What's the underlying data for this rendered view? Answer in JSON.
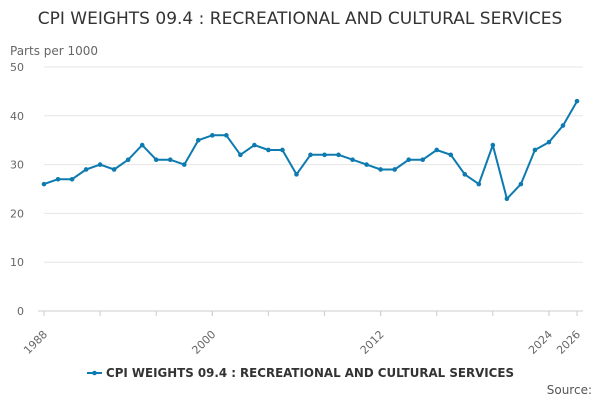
{
  "chart_data": {
    "type": "line",
    "title": "CPI WEIGHTS 09.4 : RECREATIONAL AND CULTURAL SERVICES",
    "ylabel": "Parts per 1000",
    "xlabel": "",
    "ylim": [
      0,
      50
    ],
    "yticks": [
      0,
      10,
      20,
      30,
      40,
      50
    ],
    "xlim": [
      1988,
      2026
    ],
    "xticks": [
      1988,
      2000,
      2012,
      2024,
      2026
    ],
    "grid": true,
    "legend_position": "bottom",
    "series": [
      {
        "name": "CPI WEIGHTS 09.4 : RECREATIONAL AND CULTURAL SERVICES",
        "color": "#0d7ab0",
        "x": [
          1988,
          1989,
          1990,
          1991,
          1992,
          1993,
          1994,
          1995,
          1996,
          1997,
          1998,
          1999,
          2000,
          2001,
          2002,
          2003,
          2004,
          2005,
          2006,
          2007,
          2008,
          2009,
          2010,
          2011,
          2012,
          2013,
          2014,
          2015,
          2016,
          2017,
          2018,
          2019,
          2020,
          2021,
          2022,
          2023,
          2024,
          2025,
          2026
        ],
        "values": [
          26,
          27,
          27,
          29,
          30,
          29,
          31,
          34,
          31,
          31,
          30,
          35,
          36,
          36,
          32,
          34,
          33,
          33,
          28,
          32,
          32,
          32,
          31,
          30,
          29,
          29,
          31,
          31,
          33,
          32,
          28,
          26,
          34,
          23,
          26,
          33,
          34.6,
          38,
          43
        ]
      }
    ]
  },
  "source_label": "Source:"
}
